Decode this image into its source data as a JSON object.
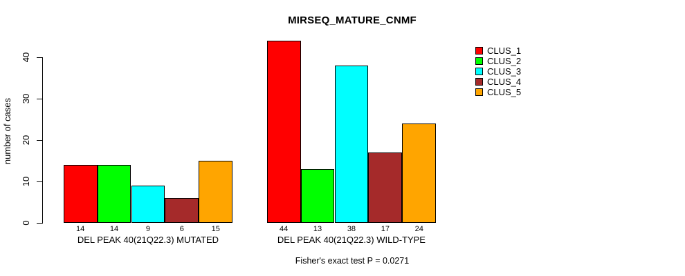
{
  "chart_data": {
    "type": "bar",
    "title": "MIRSEQ_MATURE_CNMF",
    "ylabel": "number of cases",
    "yticks": [
      0,
      10,
      20,
      30,
      40
    ],
    "ylim": [
      0,
      44
    ],
    "grid": false,
    "legend_position": "right",
    "series_names": [
      "CLUS_1",
      "CLUS_2",
      "CLUS_3",
      "CLUS_4",
      "CLUS_5"
    ],
    "series_colors": [
      "#FF0000",
      "#00FF00",
      "#00FFFF",
      "#A52A2A",
      "#FFA500"
    ],
    "groups": [
      {
        "label": "DEL PEAK 40(21Q22.3) MUTATED",
        "values": [
          14,
          14,
          9,
          6,
          15
        ]
      },
      {
        "label": "DEL PEAK 40(21Q22.3) WILD-TYPE",
        "values": [
          44,
          13,
          38,
          17,
          24
        ]
      }
    ],
    "annotation": "Fisher's exact test P = 0.0271"
  }
}
